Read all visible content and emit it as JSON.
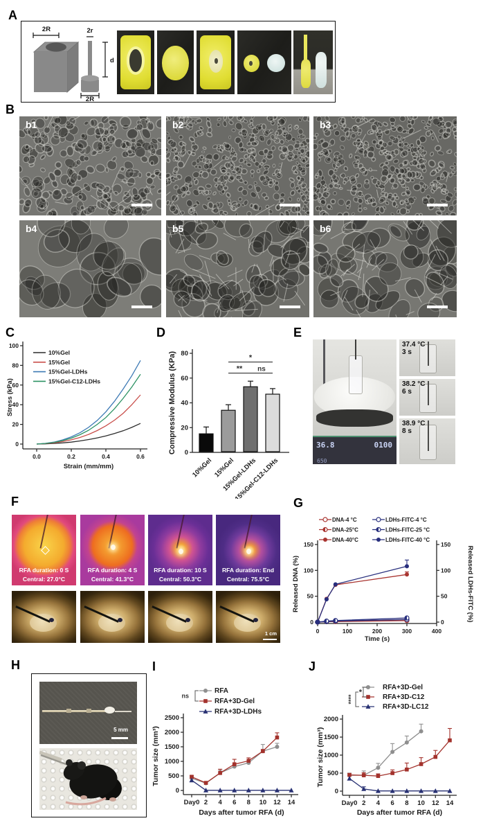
{
  "panels": [
    "A",
    "B",
    "C",
    "D",
    "E",
    "F",
    "G",
    "H",
    "I",
    "J"
  ],
  "panel_a": {
    "dims": [
      "2R",
      "2r",
      "d",
      "2R"
    ]
  },
  "panel_b": {
    "labels": [
      "b1",
      "b2",
      "b3",
      "b4",
      "b5",
      "b6"
    ]
  },
  "panel_e": {
    "snapshots": [
      {
        "temp": "37.4 °C",
        "time": "3 s"
      },
      {
        "temp": "38.2 °C",
        "time": "6 s"
      },
      {
        "temp": "38.9 °C",
        "time": "8 s"
      }
    ],
    "display": {
      "temp": "36.8",
      "timer": "0100",
      "speed": "650"
    }
  },
  "panel_f": {
    "frames": [
      {
        "duration": "RFA duration: 0 S",
        "central": "Central: 27.0°C"
      },
      {
        "duration": "RFA duration: 4 S",
        "central": "Central: 41.3°C"
      },
      {
        "duration": "RFA duration: 10 S",
        "central": "Central: 50.3°C"
      },
      {
        "duration": "RFA duration:  End",
        "central": "Central: 75.5°C"
      }
    ],
    "scale_label": "1 cm"
  },
  "panel_h": {
    "scale_label": "5 mm"
  },
  "chart_data": [
    {
      "id": "stress-strain",
      "type": "line",
      "xlabel": "Strain (mm/mm)",
      "ylabel": "Stress (kPa)",
      "xlim": [
        0,
        0.6
      ],
      "ylim": [
        0,
        100
      ],
      "xticks": [
        0,
        0.2,
        0.4,
        0.6
      ],
      "xtick_labels": [
        "0.0",
        "0.2",
        "0.4",
        "0.6"
      ],
      "yticks": [
        0,
        20,
        40,
        60,
        80,
        100
      ],
      "x": [
        0,
        0.05,
        0.1,
        0.15,
        0.2,
        0.25,
        0.3,
        0.35,
        0.4,
        0.45,
        0.5,
        0.55,
        0.6
      ],
      "series": [
        {
          "name": "10%Gel",
          "color": "#2b2b2b",
          "marker": "none",
          "values": [
            0,
            0.2,
            0.6,
            1.2,
            2,
            3.2,
            4.6,
            6.3,
            8.3,
            10.7,
            13.5,
            17,
            21
          ]
        },
        {
          "name": "15%Gel",
          "color": "#c94f4b",
          "marker": "none",
          "values": [
            0,
            0.4,
            1.2,
            2.5,
            4.3,
            6.7,
            9.8,
            13.7,
            18.5,
            24.3,
            31.3,
            40,
            50
          ]
        },
        {
          "name": "15%Gel-LDHs",
          "color": "#3c79b4",
          "marker": "none",
          "values": [
            0,
            0.7,
            2,
            4.2,
            7.3,
            11.5,
            17,
            24,
            32.8,
            43.5,
            56,
            69.5,
            85
          ]
        },
        {
          "name": "15%Gel-C12-LDHs",
          "color": "#2c9263",
          "marker": "none",
          "values": [
            0,
            0.6,
            1.7,
            3.5,
            6,
            9.5,
            14,
            20,
            27,
            36,
            46.5,
            58,
            71
          ]
        }
      ],
      "legend_position": "upper-left-inside"
    },
    {
      "id": "compressive-modulus",
      "type": "bar",
      "ylabel": "Compressive Modulus (KPa)",
      "ylim": [
        0,
        80
      ],
      "yticks": [
        0,
        20,
        40,
        60,
        80
      ],
      "categories": [
        "10%Gel",
        "15%Gel",
        "15%Gel-LDHs",
        "15%Gel-C12-LDHs"
      ],
      "values": [
        15,
        34,
        53,
        47
      ],
      "errors": [
        5.5,
        4.5,
        4.5,
        4.5
      ],
      "colors": [
        "#0a0a0a",
        "#9b9b9b",
        "#6f6f6f",
        "#dcdcdc"
      ],
      "significance": [
        {
          "from": 1,
          "to": 3,
          "y": 73,
          "label": "*"
        },
        {
          "from": 1,
          "to": 2,
          "y": 64,
          "label": "**"
        },
        {
          "from": 2,
          "to": 3,
          "y": 64,
          "label": "ns"
        }
      ]
    },
    {
      "id": "release",
      "type": "line",
      "xlabel": "Time (s)",
      "ylabel": "Released DNA (%)",
      "y2label": "Released LDHs-FITC (%)",
      "xlim": [
        0,
        400
      ],
      "ylim": [
        0,
        150
      ],
      "xticks": [
        0,
        100,
        200,
        300,
        400
      ],
      "yticks": [
        0,
        50,
        100,
        150
      ],
      "x": [
        0,
        30,
        60,
        300
      ],
      "series": [
        {
          "name": "DNA-4 °C",
          "color": "#a93430",
          "marker": "circle",
          "fill": "open",
          "values": [
            0,
            1,
            1,
            3
          ]
        },
        {
          "name": "DNA-25°C",
          "color": "#a93430",
          "marker": "circle",
          "fill": "half",
          "values": [
            0,
            1,
            2,
            5
          ]
        },
        {
          "name": "DNA-40°C",
          "color": "#a93430",
          "marker": "circle",
          "fill": "solid",
          "values": [
            0,
            45,
            72,
            92
          ],
          "errors": [
            0,
            0,
            0,
            5
          ]
        },
        {
          "name": "LDHs-FITC-4 °C",
          "color": "#272e7d",
          "marker": "circle",
          "fill": "open",
          "values": [
            0,
            1,
            2,
            5
          ]
        },
        {
          "name": "LDHs-FITC-25 °C",
          "color": "#272e7d",
          "marker": "circle",
          "fill": "half",
          "values": [
            0,
            2,
            3,
            8
          ]
        },
        {
          "name": "LDHs-FITC-40 °C",
          "color": "#272e7d",
          "marker": "circle",
          "fill": "solid",
          "values": [
            0,
            44,
            73,
            108
          ],
          "errors": [
            0,
            0,
            0,
            12
          ]
        }
      ],
      "legend_position": "above",
      "legend_cols": 2
    },
    {
      "id": "tumor-size-i",
      "type": "line",
      "xlabel": "Days after tumor RFA (d)",
      "ylabel": "Tumor size (mm³)",
      "xlim": [
        0,
        14
      ],
      "ylim": [
        0,
        2500
      ],
      "xticks": [
        0,
        2,
        4,
        6,
        8,
        10,
        12,
        14
      ],
      "xtick_labels": [
        "Day0",
        "2",
        "4",
        "6",
        "8",
        "10",
        "12",
        "14"
      ],
      "yticks": [
        0,
        500,
        1000,
        1500,
        2000,
        2500
      ],
      "series": [
        {
          "name": "RFA",
          "color": "#8f8f8f",
          "marker": "circle",
          "fill": "solid",
          "x": [
            0,
            2,
            4,
            6,
            8,
            10,
            12
          ],
          "values": [
            420,
            250,
            600,
            820,
            950,
            1350,
            1500
          ],
          "errors": [
            50,
            40,
            90,
            60,
            60,
            230,
            120
          ]
        },
        {
          "name": "RFA+3D-Gel",
          "color": "#a3322c",
          "marker": "square",
          "fill": "solid",
          "x": [
            0,
            2,
            4,
            6,
            8,
            10,
            12
          ],
          "values": [
            470,
            260,
            600,
            900,
            1020,
            1350,
            1820
          ],
          "errors": [
            40,
            40,
            130,
            170,
            100,
            60,
            160
          ]
        },
        {
          "name": "RFA+3D-LDHs",
          "color": "#283173",
          "marker": "triangle",
          "fill": "solid",
          "x": [
            0,
            2,
            4,
            6,
            8,
            10,
            12,
            14
          ],
          "values": [
            350,
            5,
            5,
            5,
            5,
            5,
            5,
            5
          ],
          "errors": [
            0,
            0,
            0,
            0,
            0,
            0,
            0,
            0
          ]
        }
      ],
      "significance": [
        {
          "label": "ns",
          "between": [
            "RFA",
            "RFA+3D-Gel"
          ]
        }
      ]
    },
    {
      "id": "tumor-size-j",
      "type": "line",
      "xlabel": "Days after tumor RFA (d)",
      "ylabel": "Tumor size (mm³)",
      "xlim": [
        0,
        14
      ],
      "ylim": [
        0,
        2000
      ],
      "xticks": [
        0,
        2,
        4,
        6,
        8,
        10,
        12,
        14
      ],
      "xtick_labels": [
        "Day0",
        "2",
        "4",
        "6",
        "8",
        "10",
        "12",
        "14"
      ],
      "yticks": [
        0,
        500,
        1000,
        1500,
        2000
      ],
      "series": [
        {
          "name": "RFA+3D-Gel",
          "color": "#8f8f8f",
          "marker": "circle",
          "fill": "solid",
          "x": [
            0,
            2,
            4,
            6,
            8,
            10
          ],
          "values": [
            440,
            440,
            650,
            1090,
            1350,
            1660
          ],
          "errors": [
            60,
            120,
            120,
            230,
            180,
            200
          ]
        },
        {
          "name": "RFA+3D-C12",
          "color": "#a3322c",
          "marker": "square",
          "fill": "solid",
          "x": [
            0,
            2,
            4,
            6,
            8,
            10,
            12,
            14
          ],
          "values": [
            450,
            440,
            420,
            500,
            600,
            750,
            950,
            1410
          ],
          "errors": [
            40,
            70,
            60,
            90,
            180,
            180,
            180,
            330
          ]
        },
        {
          "name": "RFA+3D-LC12",
          "color": "#283173",
          "marker": "triangle",
          "fill": "solid",
          "x": [
            0,
            2,
            4,
            6,
            8,
            10,
            12,
            14
          ],
          "values": [
            350,
            60,
            5,
            5,
            5,
            5,
            5,
            5
          ],
          "errors": [
            0,
            60,
            0,
            0,
            0,
            0,
            0,
            0
          ]
        }
      ],
      "significance": [
        {
          "label": "*",
          "between": [
            "RFA+3D-Gel",
            "RFA+3D-C12"
          ]
        },
        {
          "label": "****",
          "between": [
            "RFA+3D-Gel",
            "RFA+3D-LC12"
          ]
        }
      ]
    }
  ]
}
